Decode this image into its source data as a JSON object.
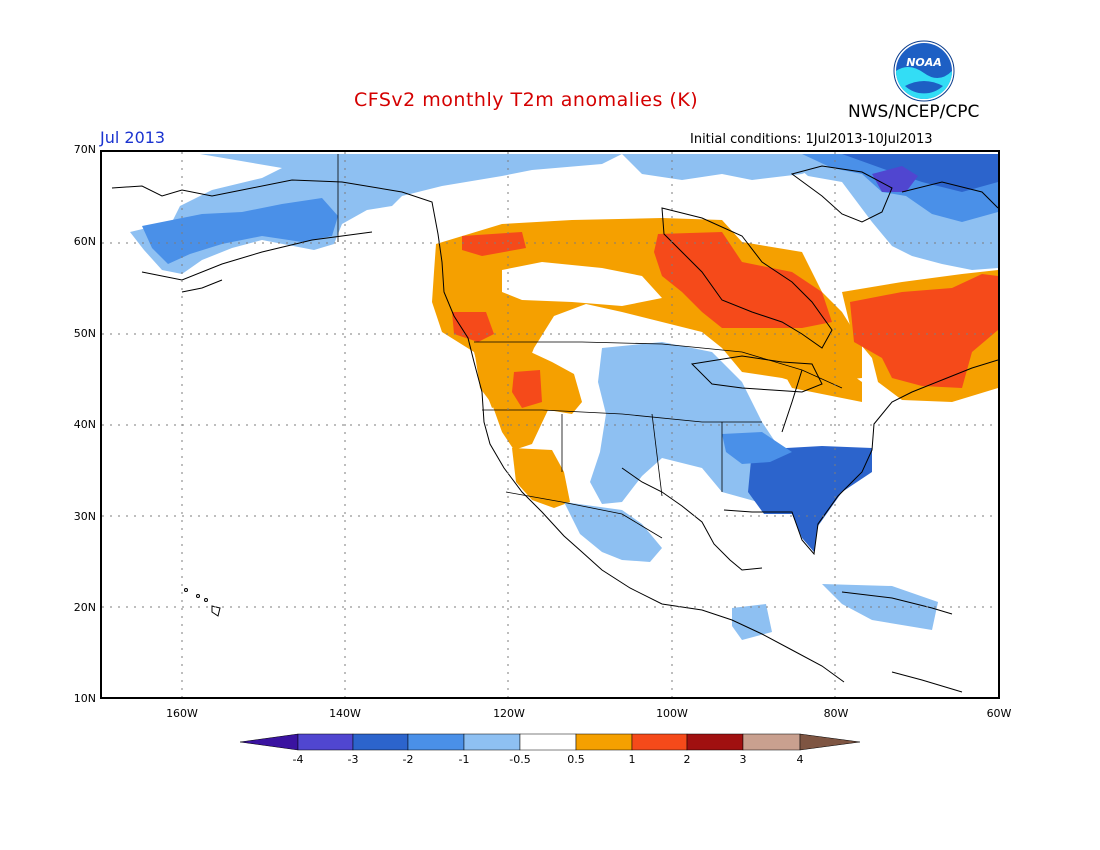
{
  "header": {
    "title": "CFSv2 monthly T2m anomalies (K)",
    "agency": "NWS/NCEP/CPC",
    "logo_text": "NOAA",
    "month": "Jul 2013",
    "initial_conditions": "Initial conditions: 1Jul2013-10Jul2013"
  },
  "map": {
    "projection": "cylindrical",
    "lat_range": [
      10,
      70
    ],
    "lon_range": [
      -170,
      -60
    ],
    "lat_labels": [
      "70N",
      "60N",
      "50N",
      "40N",
      "30N",
      "20N",
      "10N"
    ],
    "lon_labels": [
      "160W",
      "140W",
      "120W",
      "100W",
      "80W",
      "60W"
    ],
    "anomaly_regions": [
      {
        "region": "Alaska and northwest Canada",
        "category": "-1 to -0.5"
      },
      {
        "region": "Northeast Canada and Baffin",
        "category": "-3 to -1"
      },
      {
        "region": "Western Canada and Pacific Northwest",
        "category": "0.5 to 1"
      },
      {
        "region": "Hudson Bay region",
        "category": "1 to 2"
      },
      {
        "region": "Quebec and Maritimes",
        "category": "1 to 2"
      },
      {
        "region": "US Southeast",
        "category": "-2 to -1"
      },
      {
        "region": "Northern Plains and Midwest",
        "category": "-1 to -0.5"
      },
      {
        "region": "Northern Mexico",
        "category": "-1 to -0.5"
      },
      {
        "region": "Southwest US",
        "category": "0.5 to 1"
      },
      {
        "region": "Caribbean",
        "category": "-1 to -0.5"
      }
    ]
  },
  "colorbar": {
    "labels": [
      "-4",
      "-3",
      "-2",
      "-1",
      "-0.5",
      "0.5",
      "1",
      "2",
      "3",
      "4"
    ],
    "colors": [
      "#3a13a0",
      "#5046d0",
      "#2c64cc",
      "#4a90e8",
      "#8ec0f2",
      "#ffffff",
      "#f5a000",
      "#f54a1a",
      "#a01010",
      "#c9a08f",
      "#7e5542"
    ]
  },
  "colors": {
    "land_outline": "#000000",
    "grid": "#7d7d7d"
  }
}
